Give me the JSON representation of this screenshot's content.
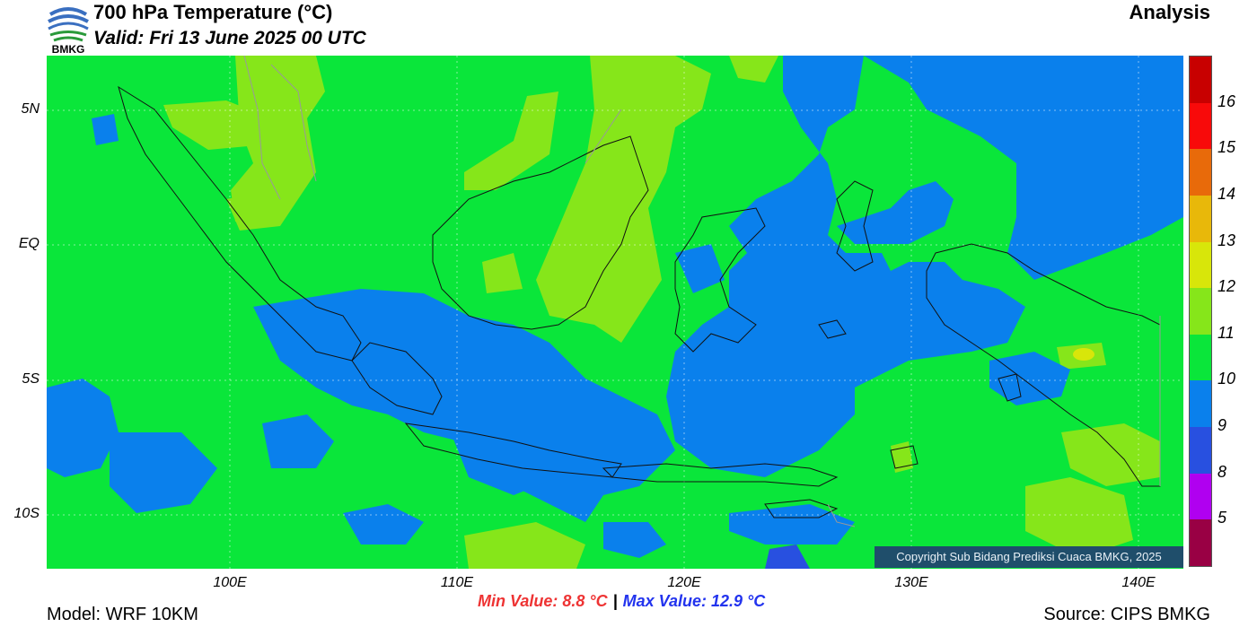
{
  "header": {
    "title": "700 hPa Temperature (°C)",
    "subtitle": "Valid: Fri 13 June 2025 00 UTC",
    "mode": "Analysis",
    "logo_text": "BMKG"
  },
  "map": {
    "lat_labels": [
      "5N",
      "EQ",
      "5S",
      "10S"
    ],
    "lon_labels": [
      "100E",
      "110E",
      "120E",
      "130E",
      "140E"
    ],
    "copyright": "Copyright Sub Bidang Prediksi Cuaca BMKG, 2025",
    "legend": {
      "colors": [
        "#990044",
        "#b000f0",
        "#2850e0",
        "#0a80ec",
        "#0ae63a",
        "#86e61a",
        "#d8e60a",
        "#e8b80a",
        "#e86a0a",
        "#f80a0a",
        "#c80000"
      ],
      "labels": [
        "5",
        "8",
        "9",
        "10",
        "11",
        "12",
        "13",
        "14",
        "15",
        "16"
      ]
    }
  },
  "footer": {
    "min_value": "Min Value: 8.8 °C",
    "separator": "|",
    "max_value": "Max Value: 12.9 °C",
    "model": "Model: WRF 10KM",
    "source": "Source: CIPS BMKG"
  }
}
